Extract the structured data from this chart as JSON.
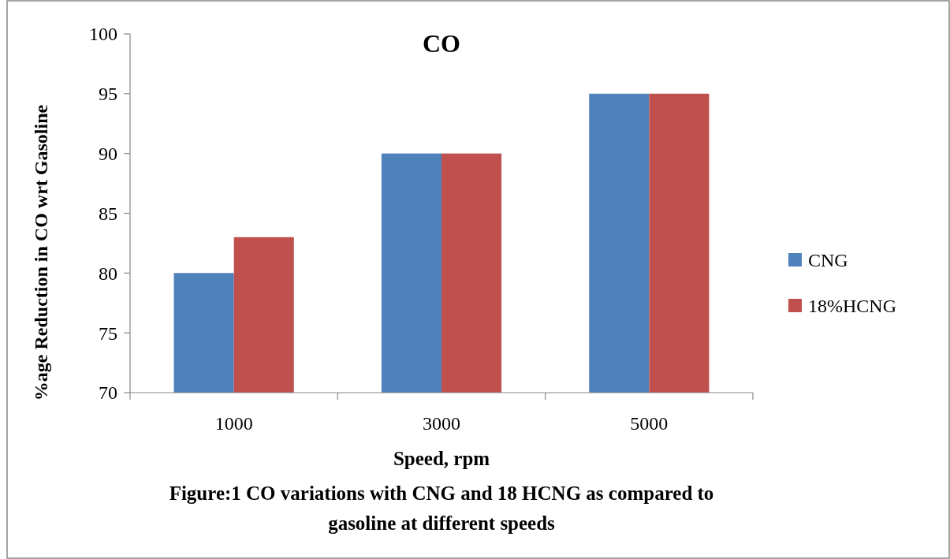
{
  "chart_data": {
    "type": "bar",
    "title": "CO",
    "xlabel": "Speed, rpm",
    "ylabel": "%age  Reduction in CO wrt Gasoline",
    "categories": [
      "1000",
      "3000",
      "5000"
    ],
    "series": [
      {
        "name": "CNG",
        "color": "#4f81bd",
        "values": [
          80,
          90,
          95
        ]
      },
      {
        "name": "18%HCNG",
        "color": "#c0504d",
        "values": [
          83,
          90,
          95
        ]
      }
    ],
    "ylim": [
      70,
      100
    ],
    "yticks": [
      70,
      75,
      80,
      85,
      90,
      95,
      100
    ],
    "grid": false,
    "legend": "right",
    "annotations": [
      "Figure:1 CO variations with CNG and 18 HCNG as compared to gasoline at different speeds"
    ]
  }
}
